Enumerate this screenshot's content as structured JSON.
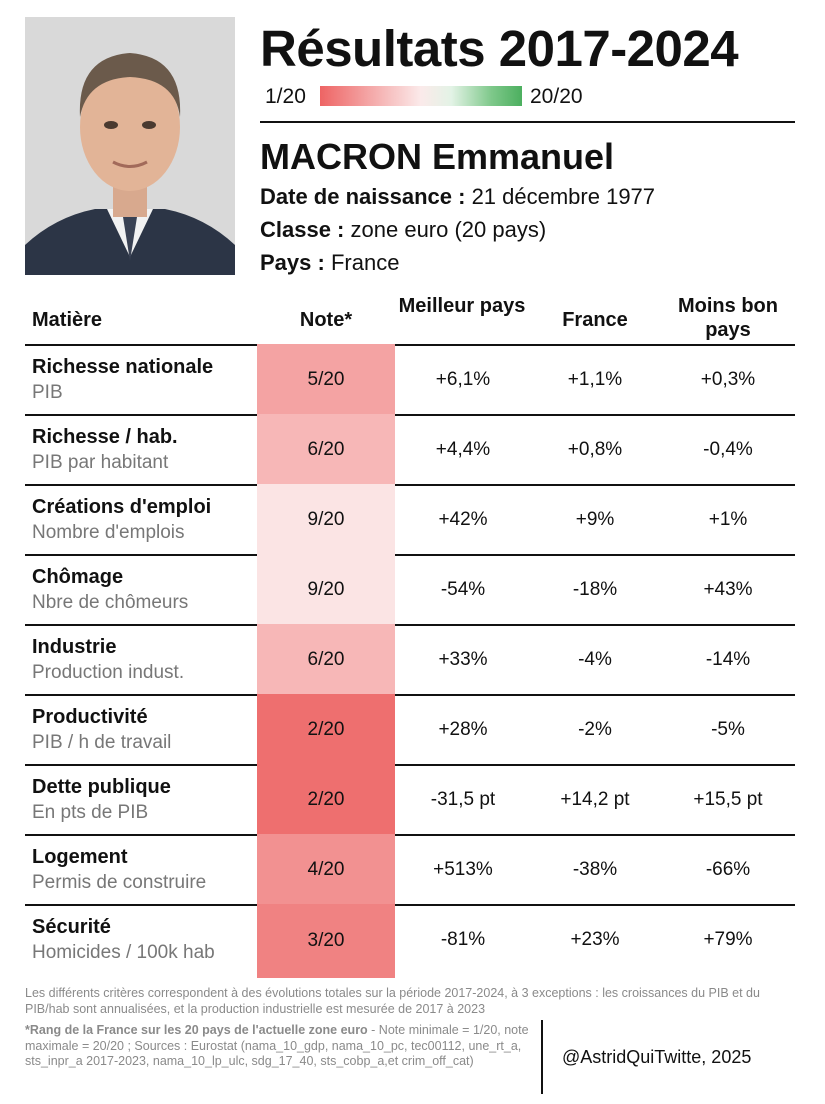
{
  "header": {
    "title": "Résultats 2017-2024",
    "scale_min": "1/20",
    "scale_max": "20/20",
    "colors": {
      "low": "#ee6464",
      "mid": "#fbeaea",
      "high": "#4caf5f"
    }
  },
  "person": {
    "name": "MACRON Emmanuel",
    "birth_label": "Date de naissance :",
    "birth_value": "21 décembre 1977",
    "class_label": "Classe :",
    "class_value": "zone euro (20 pays)",
    "country_label": "Pays :",
    "country_value": "France"
  },
  "table": {
    "headers": {
      "subject": "Matière",
      "note": "Note*",
      "best": "Meilleur pays",
      "france": "France",
      "worst": "Moins bon pays"
    },
    "rows": [
      {
        "subject": "Richesse nationale",
        "detail": "PIB",
        "note": "5/20",
        "note_score": 5,
        "note_color": "#f4a3a3",
        "best": "+6,1%",
        "france": "+1,1%",
        "worst": "+0,3%"
      },
      {
        "subject": "Richesse / hab.",
        "detail": "PIB par habitant",
        "note": "6/20",
        "note_score": 6,
        "note_color": "#f7b7b7",
        "best": "+4,4%",
        "france": "+0,8%",
        "worst": "-0,4%"
      },
      {
        "subject": "Créations d'emploi",
        "detail": "Nombre d'emplois",
        "note": "9/20",
        "note_score": 9,
        "note_color": "#fbe4e4",
        "best": "+42%",
        "france": "+9%",
        "worst": "+1%"
      },
      {
        "subject": "Chômage",
        "detail": "Nbre de chômeurs",
        "note": "9/20",
        "note_score": 9,
        "note_color": "#fbe4e4",
        "best": "-54%",
        "france": "-18%",
        "worst": "+43%"
      },
      {
        "subject": "Industrie",
        "detail": "Production indust.",
        "note": "6/20",
        "note_score": 6,
        "note_color": "#f7b7b7",
        "best": "+33%",
        "france": "-4%",
        "worst": "-14%"
      },
      {
        "subject": "Productivité",
        "detail": "PIB / h de travail",
        "note": "2/20",
        "note_score": 2,
        "note_color": "#ee6f6f",
        "best": "+28%",
        "france": "-2%",
        "worst": "-5%"
      },
      {
        "subject": "Dette publique",
        "detail": "En pts de PIB",
        "note": "2/20",
        "note_score": 2,
        "note_color": "#ee6f6f",
        "best": "-31,5 pt",
        "france": "+14,2 pt",
        "worst": "+15,5 pt"
      },
      {
        "subject": "Logement",
        "detail": "Permis de construire",
        "note": "4/20",
        "note_score": 4,
        "note_color": "#f29191",
        "best": "+513%",
        "france": "-38%",
        "worst": "-66%"
      },
      {
        "subject": "Sécurité",
        "detail": "Homicides / 100k hab",
        "note": "3/20",
        "note_score": 3,
        "note_color": "#f08282",
        "best": "-81%",
        "france": "+23%",
        "worst": "+79%"
      }
    ]
  },
  "footer": {
    "note1": "Les différents critères correspondent à des évolutions totales sur la période 2017-2024, à 3 exceptions : les croissances du PIB et du PIB/hab sont annualisées, et la production industrielle est mesurée de 2017 à 2023",
    "note2_bold": "*Rang de la France sur les 20 pays de l'actuelle zone euro",
    "note2_rest": " - Note minimale = 1/20, note maximale = 20/20 ; Sources : Eurostat (nama_10_gdp, nama_10_pc, tec00112, une_rt_a, sts_inpr_a 2017-2023, nama_10_lp_ulc, sdg_17_40, sts_cobp_a,et crim_off_cat)",
    "handle": "@AstridQuiTwitte, 2025"
  }
}
